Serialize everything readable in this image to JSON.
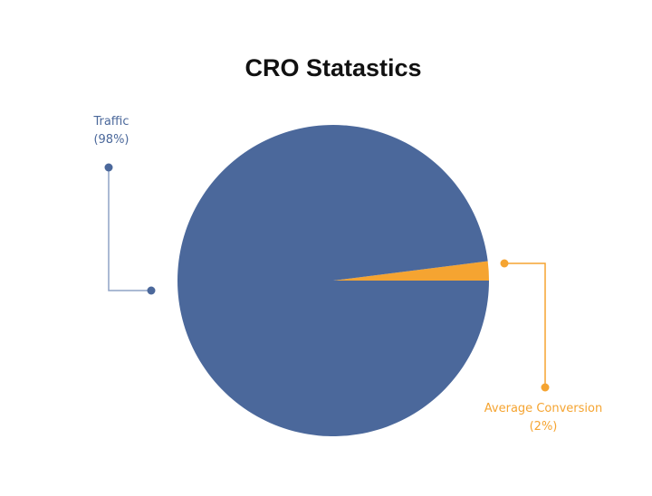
{
  "chart_data": {
    "type": "pie",
    "title": "CRO Statastics",
    "slices": [
      {
        "label": "Traffic",
        "value": 98,
        "value_label": "(98%)",
        "color": "#4B689B"
      },
      {
        "label": "Average Conversion",
        "value": 2,
        "value_label": "(2%)",
        "color": "#F5A431"
      }
    ]
  }
}
